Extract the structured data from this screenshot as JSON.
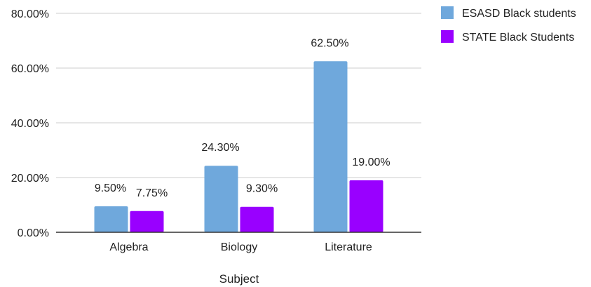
{
  "chart_data": {
    "type": "bar",
    "categories": [
      "Algebra",
      "Biology",
      "Literature"
    ],
    "series": [
      {
        "name": "ESASD Black students",
        "values": [
          9.5,
          24.3,
          62.5
        ],
        "labels": [
          "9.50%",
          "24.30%",
          "62.50%"
        ],
        "color": "#6fa8dc"
      },
      {
        "name": "STATE Black Students",
        "values": [
          7.75,
          9.3,
          19.0
        ],
        "labels": [
          "7.75%",
          "9.30%",
          "19.00%"
        ],
        "color": "#9900ff"
      }
    ],
    "xlabel": "Subject",
    "ylabel": "",
    "ylim": [
      0,
      80
    ],
    "yticks": [
      0,
      20,
      40,
      60,
      80
    ],
    "ytick_labels": [
      "0.00%",
      "20.00%",
      "40.00%",
      "60.00%",
      "80.00%"
    ],
    "grid": true,
    "legend_position": "top-right",
    "gridline_color": "#cccccc",
    "axis_color": "#333333"
  }
}
